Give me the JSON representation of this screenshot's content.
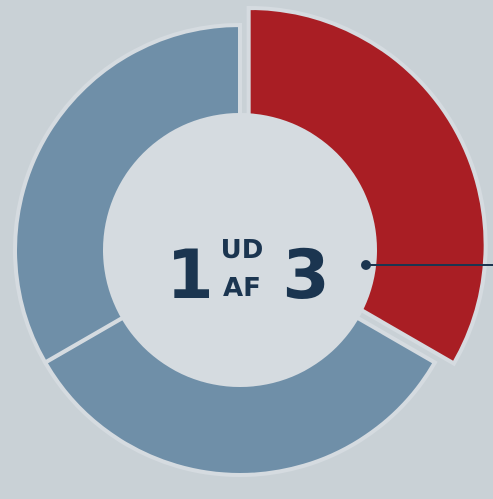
{
  "chart_data": {
    "type": "donut",
    "values": [
      1,
      1,
      1
    ],
    "colors": [
      "#a91e24",
      "#6f8fa8",
      "#6f8fa8"
    ],
    "highlight": 0,
    "center_text": {
      "count": "1",
      "top": "UD",
      "bottom": "AF",
      "total": "3"
    }
  }
}
